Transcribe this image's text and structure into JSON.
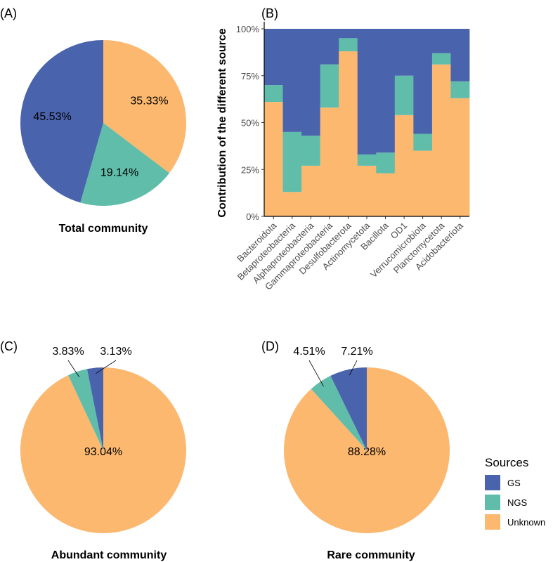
{
  "colors": {
    "GS": "#4a63ad",
    "NGS": "#5fbdaa",
    "Unknown": "#fcb86f"
  },
  "chart_data": [
    {
      "panel": "(A)",
      "type": "pie",
      "title": "Total community",
      "slices": [
        {
          "source": "Unknown",
          "value": 35.33,
          "label": "35.33%"
        },
        {
          "source": "NGS",
          "value": 19.14,
          "label": "19.14%"
        },
        {
          "source": "GS",
          "value": 45.53,
          "label": "45.53%"
        }
      ]
    },
    {
      "panel": "(B)",
      "type": "bar",
      "stacked": true,
      "ylabel": "Contribution of the different source",
      "xlabel": "",
      "ylim": [
        0,
        1
      ],
      "yticks": [
        "0%",
        "25%",
        "50%",
        "75%",
        "100%"
      ],
      "categories": [
        "Bacteroidota",
        "Betaproteobacteria",
        "Alphaproteobacteria",
        "Gammaproteobacteria",
        "Desulfobacterota",
        "Actinomycetota",
        "Bacillota",
        "OD1",
        "Verrucomicrobiota",
        "Planctomycetota",
        "Acidobacteriota"
      ],
      "series": [
        {
          "name": "Unknown",
          "values": [
            0.61,
            0.13,
            0.27,
            0.58,
            0.88,
            0.27,
            0.23,
            0.54,
            0.35,
            0.81,
            0.63
          ]
        },
        {
          "name": "NGS",
          "values": [
            0.09,
            0.32,
            0.16,
            0.23,
            0.07,
            0.06,
            0.11,
            0.21,
            0.09,
            0.06,
            0.09
          ]
        },
        {
          "name": "GS",
          "values": [
            0.3,
            0.55,
            0.57,
            0.19,
            0.05,
            0.67,
            0.66,
            0.25,
            0.56,
            0.13,
            0.28
          ]
        }
      ]
    },
    {
      "panel": "(C)",
      "type": "pie",
      "title": "Abundant community",
      "slices": [
        {
          "source": "Unknown",
          "value": 93.04,
          "label": "93.04%"
        },
        {
          "source": "NGS",
          "value": 3.83,
          "label": "3.83%"
        },
        {
          "source": "GS",
          "value": 3.13,
          "label": "3.13%"
        }
      ]
    },
    {
      "panel": "(D)",
      "type": "pie",
      "title": "Rare community",
      "slices": [
        {
          "source": "Unknown",
          "value": 88.28,
          "label": "88.28%"
        },
        {
          "source": "NGS",
          "value": 4.51,
          "label": "4.51%"
        },
        {
          "source": "GS",
          "value": 7.21,
          "label": "7.21%"
        }
      ]
    }
  ],
  "legend": {
    "title": "Sources",
    "items": [
      {
        "source": "GS",
        "label": "GS"
      },
      {
        "source": "NGS",
        "label": "NGS"
      },
      {
        "source": "Unknown",
        "label": "Unknown"
      }
    ]
  }
}
